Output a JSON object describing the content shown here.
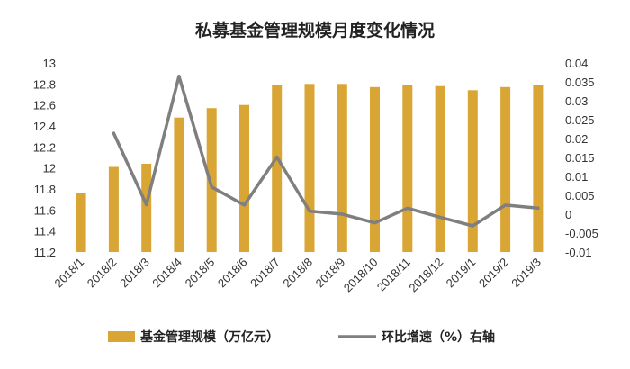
{
  "chart_data": {
    "type": "bar+line",
    "title": "私募基金管理规模月度变化情况",
    "categories": [
      "2018/1",
      "2018/2",
      "2018/3",
      "2018/4",
      "2018/5",
      "2018/6",
      "2018/7",
      "2018/8",
      "2018/9",
      "2018/10",
      "2018/11",
      "2018/12",
      "2019/1",
      "2019/2",
      "2019/3"
    ],
    "series": [
      {
        "name": "基金管理规模（万亿元）",
        "type": "bar",
        "axis": "left",
        "color": "#D9A635",
        "values": [
          11.76,
          12.01,
          12.04,
          12.48,
          12.57,
          12.6,
          12.79,
          12.8,
          12.8,
          12.77,
          12.79,
          12.78,
          12.74,
          12.77,
          12.79
        ]
      },
      {
        "name": "环比增速（%）右轴",
        "type": "line",
        "axis": "right",
        "color": "#7F7F7F",
        "values": [
          null,
          0.0214,
          0.0025,
          0.0365,
          0.0072,
          0.0024,
          0.0151,
          0.0008,
          0.0,
          -0.0023,
          0.0016,
          -0.0008,
          -0.0031,
          0.0024,
          0.0016
        ]
      }
    ],
    "y_left": {
      "range": [
        11.2,
        13
      ],
      "ticks": [
        "11.2",
        "11.4",
        "11.6",
        "11.8",
        "12",
        "12.2",
        "12.4",
        "12.6",
        "12.8",
        "13"
      ]
    },
    "y_right": {
      "range": [
        -0.01,
        0.04
      ],
      "ticks": [
        "-0.01",
        "-0.005",
        "0",
        "0.005",
        "0.01",
        "0.015",
        "0.02",
        "0.025",
        "0.03",
        "0.035",
        "0.04"
      ]
    },
    "grid": false,
    "legend_position": "bottom"
  }
}
